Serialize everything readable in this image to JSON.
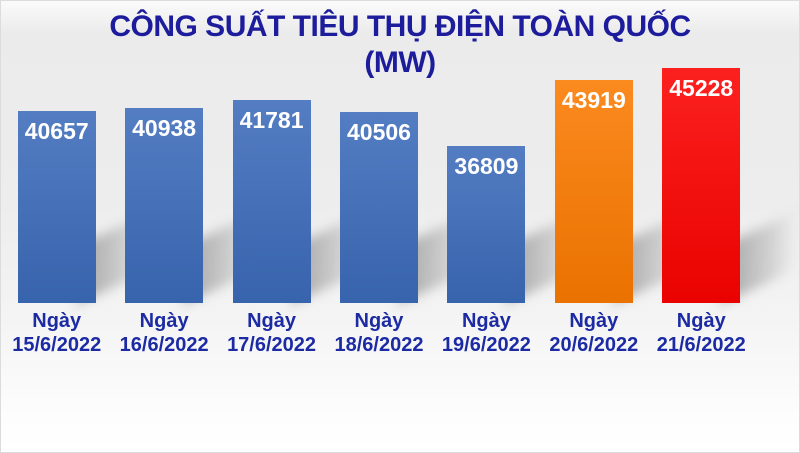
{
  "title": {
    "line1": "CÔNG SUẤT TIÊU THỤ ĐIỆN TOÀN QUỐC",
    "line2": "(MW)"
  },
  "chart_data": {
    "type": "bar",
    "title": "CÔNG SUẤT TIÊU THỤ ĐIỆN TOÀN QUỐC (MW)",
    "unit": "MW",
    "categories": [
      "Ngày 15/6/2022",
      "Ngày 16/6/2022",
      "Ngày 17/6/2022",
      "Ngày 18/6/2022",
      "Ngày 19/6/2022",
      "Ngày 20/6/2022",
      "Ngày 21/6/2022"
    ],
    "category_prefix": "Ngày",
    "dates": [
      "15/6/2022",
      "16/6/2022",
      "17/6/2022",
      "18/6/2022",
      "19/6/2022",
      "20/6/2022",
      "21/6/2022"
    ],
    "values": [
      40657,
      40938,
      41781,
      40506,
      36809,
      43919,
      45228
    ],
    "bar_colors": [
      "#3c6bba",
      "#3c6bba",
      "#3c6bba",
      "#3c6bba",
      "#3c6bba",
      "#fb7a00",
      "#fb0200"
    ],
    "value_label_color": "#ffffff",
    "value_labels_position": "inside-top",
    "ylim": [
      19900,
      52500
    ],
    "grid": false,
    "legend": false,
    "xlabel": "",
    "ylabel": ""
  },
  "colors": {
    "title_text": "#1c1c9c",
    "category_text": "#1c2ba4",
    "background_top": "#ebebeb",
    "background_bottom": "#ffffff"
  }
}
